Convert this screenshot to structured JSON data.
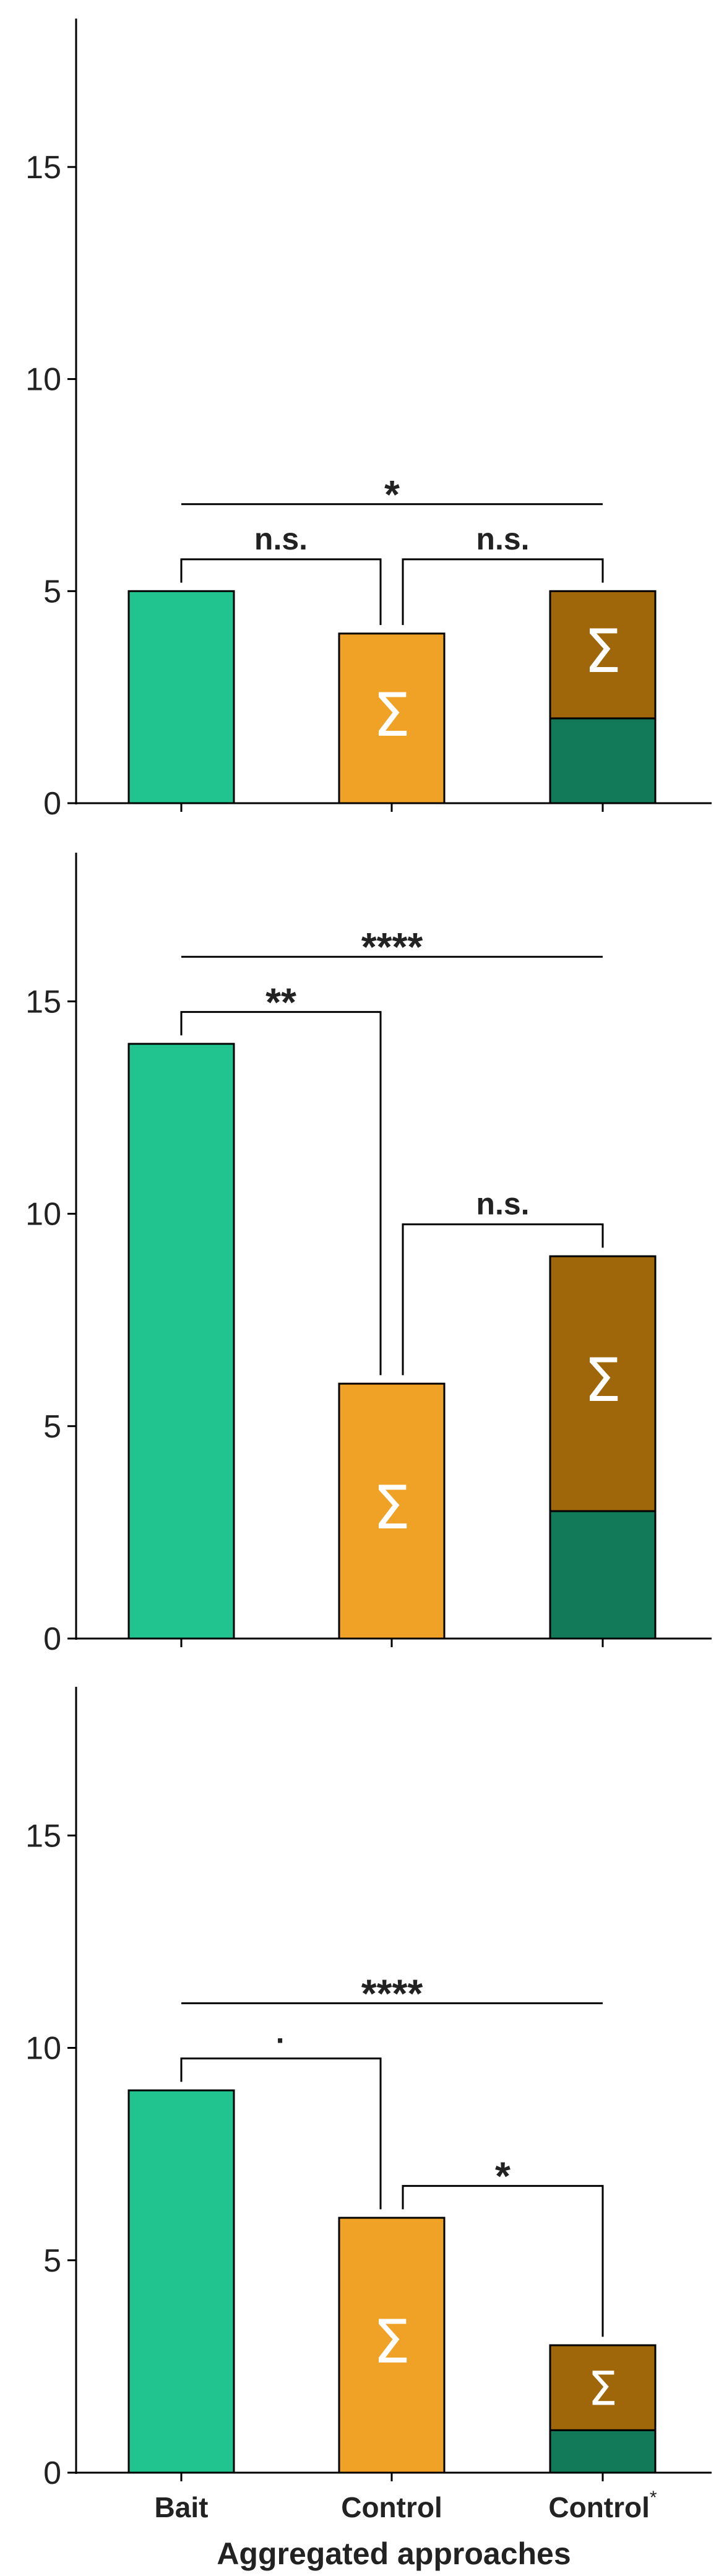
{
  "chart_data": [
    {
      "type": "bar",
      "categories": [
        "Bait",
        "Control",
        "Control"
      ],
      "category_superscripts": [
        "",
        "",
        "*"
      ],
      "ylim": [
        0,
        18.5
      ],
      "yticks": [
        0,
        5,
        10,
        15
      ],
      "bars": [
        {
          "category": "Bait",
          "segments": [
            {
              "value": 5,
              "color": "#21c48e"
            }
          ]
        },
        {
          "category": "Control",
          "segments": [
            {
              "value": 4,
              "color": "#efa226",
              "symbol": "Σ"
            }
          ]
        },
        {
          "category": "Control*",
          "segments": [
            {
              "value": 2,
              "color": "#127a58"
            },
            {
              "value": 3,
              "color": "#a0660a",
              "symbol": "Σ"
            }
          ]
        }
      ],
      "comparisons": [
        {
          "from": 0,
          "to": 1,
          "label": "n.s."
        },
        {
          "from": 1,
          "to": 2,
          "label": "n.s."
        },
        {
          "from": 0,
          "to": 2,
          "label": "*"
        }
      ]
    },
    {
      "type": "bar",
      "categories": [
        "Bait",
        "Control",
        "Control"
      ],
      "category_superscripts": [
        "",
        "",
        "*"
      ],
      "ylim": [
        0,
        18.5
      ],
      "yticks": [
        0,
        5,
        10,
        15
      ],
      "bars": [
        {
          "category": "Bait",
          "segments": [
            {
              "value": 14,
              "color": "#21c48e"
            }
          ]
        },
        {
          "category": "Control",
          "segments": [
            {
              "value": 6,
              "color": "#efa226",
              "symbol": "Σ"
            }
          ]
        },
        {
          "category": "Control*",
          "segments": [
            {
              "value": 3,
              "color": "#127a58"
            },
            {
              "value": 6,
              "color": "#a0660a",
              "symbol": "Σ"
            }
          ]
        }
      ],
      "comparisons": [
        {
          "from": 0,
          "to": 1,
          "label": "**"
        },
        {
          "from": 1,
          "to": 2,
          "label": "n.s."
        },
        {
          "from": 0,
          "to": 2,
          "label": "****"
        }
      ]
    },
    {
      "type": "bar",
      "categories": [
        "Bait",
        "Control",
        "Control"
      ],
      "category_superscripts": [
        "",
        "",
        "*"
      ],
      "ylim": [
        0,
        18.5
      ],
      "yticks": [
        0,
        5,
        10,
        15
      ],
      "xlabel": "Aggregated approaches",
      "bars": [
        {
          "category": "Bait",
          "segments": [
            {
              "value": 9,
              "color": "#21c48e"
            }
          ]
        },
        {
          "category": "Control",
          "segments": [
            {
              "value": 6,
              "color": "#efa226",
              "symbol": "Σ"
            }
          ]
        },
        {
          "category": "Control*",
          "segments": [
            {
              "value": 1,
              "color": "#127a58"
            },
            {
              "value": 2,
              "color": "#a0660a",
              "symbol": "Σ"
            }
          ]
        }
      ],
      "comparisons": [
        {
          "from": 0,
          "to": 1,
          "label": "·"
        },
        {
          "from": 1,
          "to": 2,
          "label": "*"
        },
        {
          "from": 0,
          "to": 2,
          "label": "****"
        }
      ]
    }
  ]
}
